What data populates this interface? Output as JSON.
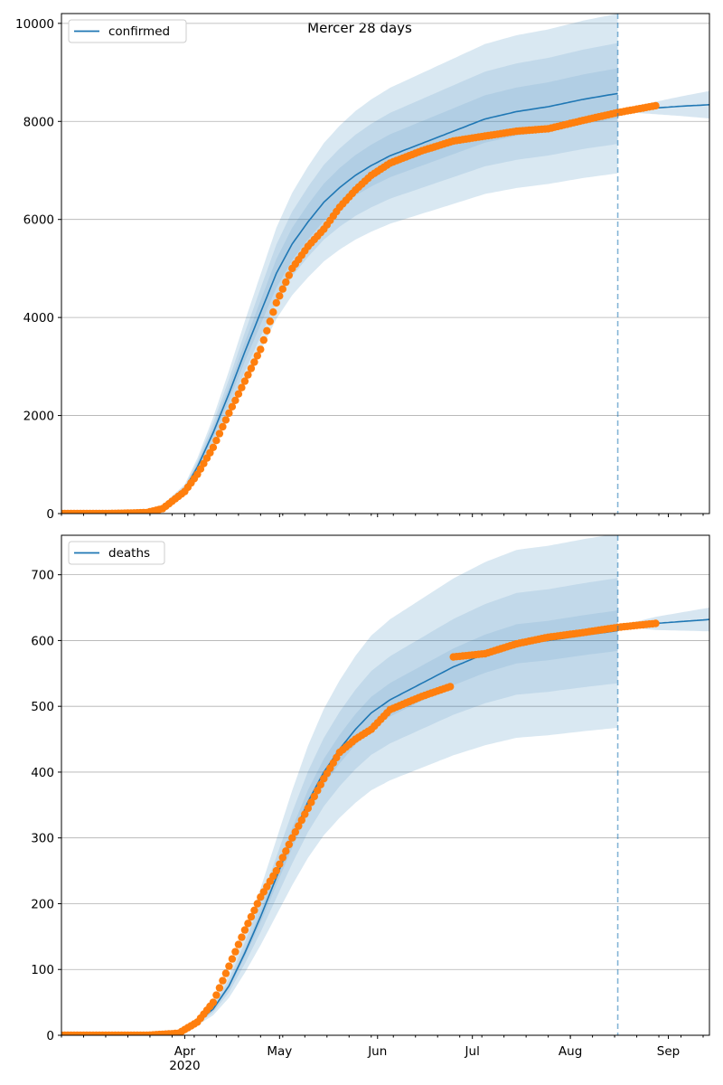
{
  "figure": {
    "title": "Mercer 28 days"
  },
  "colors": {
    "model": "#1f77b4",
    "observed": "#ff7f0e",
    "band": "#1f77b4",
    "grid": "#b0b0b0"
  },
  "chart_data": [
    {
      "type": "line",
      "legend": "confirmed",
      "legend_placement": "top-left",
      "grid": "horizontal",
      "ylim": [
        0,
        10200
      ],
      "yticks": [
        0,
        2000,
        4000,
        6000,
        8000,
        10000
      ],
      "xlim": [
        "2020-02-22",
        "2020-09-14"
      ],
      "forecast_start": "2020-08-16",
      "model": {
        "x": [
          "2020-02-22",
          "2020-03-10",
          "2020-03-20",
          "2020-03-25",
          "2020-04-01",
          "2020-04-05",
          "2020-04-10",
          "2020-04-15",
          "2020-04-20",
          "2020-04-25",
          "2020-04-30",
          "2020-05-05",
          "2020-05-10",
          "2020-05-15",
          "2020-05-20",
          "2020-05-25",
          "2020-05-30",
          "2020-06-05",
          "2020-06-15",
          "2020-06-25",
          "2020-07-05",
          "2020-07-15",
          "2020-07-25",
          "2020-08-05",
          "2020-08-16"
        ],
        "y": [
          0,
          5,
          40,
          150,
          500,
          950,
          1650,
          2450,
          3300,
          4100,
          4900,
          5500,
          5950,
          6350,
          6650,
          6900,
          7100,
          7300,
          7550,
          7800,
          8050,
          8200,
          8300,
          8450,
          8570
        ]
      },
      "band_offsets_fraction": [
        0.06,
        0.12,
        0.19
      ],
      "projection": {
        "x": [
          "2020-08-16",
          "2020-08-25",
          "2020-09-05",
          "2020-09-14"
        ],
        "y": [
          8200,
          8260,
          8310,
          8340
        ],
        "band_halfwidth": [
          0,
          100,
          200,
          280
        ]
      },
      "observed": {
        "x": [
          "2020-02-22",
          "2020-03-10",
          "2020-03-20",
          "2020-03-25",
          "2020-04-01",
          "2020-04-05",
          "2020-04-10",
          "2020-04-15",
          "2020-04-20",
          "2020-04-25",
          "2020-04-30",
          "2020-05-05",
          "2020-05-10",
          "2020-05-15",
          "2020-05-20",
          "2020-05-25",
          "2020-05-30",
          "2020-06-05",
          "2020-06-15",
          "2020-06-25",
          "2020-07-05",
          "2020-07-15",
          "2020-07-25",
          "2020-08-05",
          "2020-08-16",
          "2020-08-28"
        ],
        "y": [
          0,
          3,
          20,
          100,
          450,
          800,
          1350,
          2050,
          2700,
          3350,
          4300,
          5000,
          5450,
          5800,
          6250,
          6600,
          6900,
          7150,
          7400,
          7600,
          7700,
          7800,
          7850,
          8020,
          8180,
          8320
        ]
      },
      "tick_labels": [
        {
          "text": "Apr",
          "date": "2020-04-01",
          "sub": "2020"
        },
        {
          "text": "May",
          "date": "2020-05-01"
        },
        {
          "text": "Jun",
          "date": "2020-06-01"
        },
        {
          "text": "Jul",
          "date": "2020-07-01"
        },
        {
          "text": "Aug",
          "date": "2020-08-01"
        },
        {
          "text": "Sep",
          "date": "2020-09-01"
        }
      ],
      "show_x_labels": false
    },
    {
      "type": "line",
      "legend": "deaths",
      "legend_placement": "top-left",
      "grid": "horizontal",
      "ylim": [
        0,
        760
      ],
      "yticks": [
        0,
        100,
        200,
        300,
        400,
        500,
        600,
        700
      ],
      "xlim": [
        "2020-02-22",
        "2020-09-14"
      ],
      "forecast_start": "2020-08-16",
      "model": {
        "x": [
          "2020-02-22",
          "2020-03-20",
          "2020-03-30",
          "2020-04-05",
          "2020-04-10",
          "2020-04-15",
          "2020-04-20",
          "2020-04-25",
          "2020-04-30",
          "2020-05-05",
          "2020-05-10",
          "2020-05-15",
          "2020-05-20",
          "2020-05-25",
          "2020-05-30",
          "2020-06-05",
          "2020-06-15",
          "2020-06-25",
          "2020-07-05",
          "2020-07-15",
          "2020-07-25",
          "2020-08-05",
          "2020-08-16"
        ],
        "y": [
          0,
          1,
          3,
          20,
          40,
          75,
          125,
          180,
          240,
          300,
          355,
          400,
          435,
          465,
          490,
          510,
          535,
          560,
          580,
          595,
          600,
          608,
          615
        ]
      },
      "band_offsets_fraction": [
        0.05,
        0.13,
        0.24
      ],
      "projection": {
        "x": [
          "2020-08-16",
          "2020-08-28",
          "2020-09-14"
        ],
        "y": [
          622,
          626,
          632
        ],
        "band_halfwidth": [
          0,
          10,
          18
        ]
      },
      "observed": {
        "x": [
          "2020-02-22",
          "2020-03-20",
          "2020-03-30",
          "2020-04-05",
          "2020-04-10",
          "2020-04-15",
          "2020-04-20",
          "2020-04-25",
          "2020-04-30",
          "2020-05-05",
          "2020-05-10",
          "2020-05-15",
          "2020-05-20",
          "2020-05-25",
          "2020-05-30",
          "2020-06-05",
          "2020-06-15",
          "2020-06-24",
          "2020-06-25",
          "2020-07-05",
          "2020-07-15",
          "2020-07-25",
          "2020-08-05",
          "2020-08-16",
          "2020-08-28"
        ],
        "y": [
          0,
          0,
          3,
          20,
          50,
          105,
          160,
          210,
          250,
          300,
          345,
          390,
          430,
          450,
          465,
          495,
          515,
          530,
          575,
          580,
          595,
          605,
          612,
          620,
          626
        ]
      },
      "tick_labels": [
        {
          "text": "Apr",
          "date": "2020-04-01",
          "sub": "2020"
        },
        {
          "text": "May",
          "date": "2020-05-01"
        },
        {
          "text": "Jun",
          "date": "2020-06-01"
        },
        {
          "text": "Jul",
          "date": "2020-07-01"
        },
        {
          "text": "Aug",
          "date": "2020-08-01"
        },
        {
          "text": "Sep",
          "date": "2020-09-01"
        }
      ],
      "show_x_labels": true
    }
  ]
}
